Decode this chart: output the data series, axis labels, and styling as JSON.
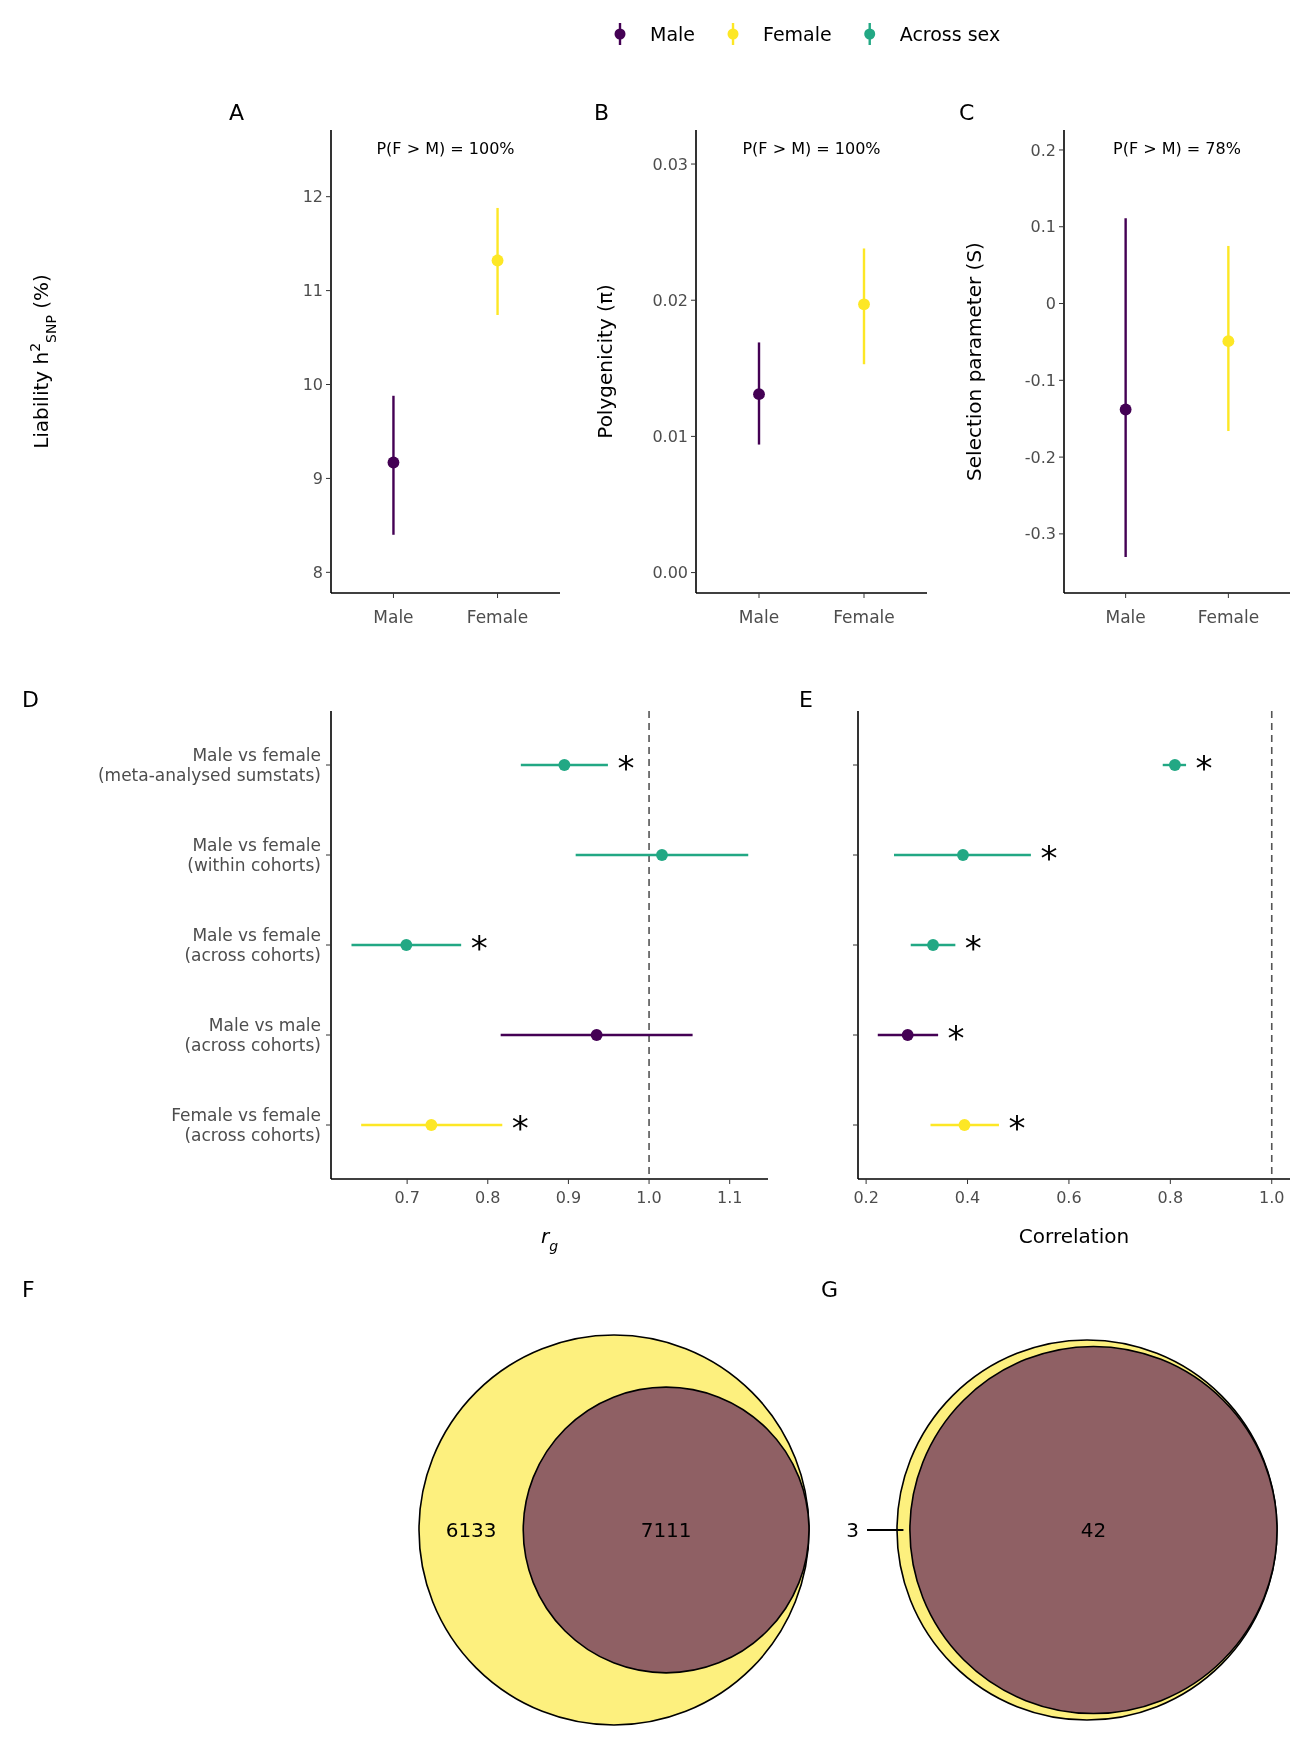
{
  "chart_data": [
    {
      "type": "scatter",
      "title": "A",
      "ylabel": "Liability h$^{2}$$_{SNP}$ (%)",
      "categories": [
        "Male",
        "Female"
      ],
      "ylim": [
        7.78,
        12.71
      ],
      "yticks": [
        8,
        9,
        10,
        11,
        12
      ],
      "marker": "circle",
      "annotations": [
        "P(F > M) = 100%"
      ],
      "legend": "top",
      "series": [
        {
          "name": "Male",
          "color": "#440154",
          "values": [
            9.17,
            null
          ],
          "errors": [
            [
              8.4,
              9.88
            ],
            null
          ]
        },
        {
          "name": "Female",
          "color": "#fde725",
          "values": [
            null,
            11.32
          ],
          "errors": [
            null,
            [
              10.74,
              11.88
            ]
          ]
        }
      ]
    },
    {
      "type": "scatter",
      "title": "B",
      "ylabel": "Polygenicity (π)",
      "categories": [
        "Male",
        "Female"
      ],
      "ylim": [
        -0.0015,
        0.0325
      ],
      "yticks": [
        {
          "value": 0,
          "label": "0.00"
        },
        0.01,
        0.02,
        0.03
      ],
      "marker": "circle",
      "annotations": [
        "P(F > M) = 100%"
      ],
      "series": [
        {
          "name": "Male",
          "color": "#440154",
          "values": [
            0.0131,
            null
          ],
          "errors": [
            [
              0.0094,
              0.0169
            ],
            null
          ]
        },
        {
          "name": "Female",
          "color": "#fde725",
          "values": [
            null,
            0.0197
          ],
          "errors": [
            null,
            [
              0.0153,
              0.0238
            ]
          ]
        }
      ]
    },
    {
      "type": "scatter",
      "title": "C",
      "ylabel": "Selection parameter (S)",
      "categories": [
        "Male",
        "Female"
      ],
      "ylim": [
        -0.377,
        0.226
      ],
      "yticks": [
        -0.3,
        -0.2,
        -0.1,
        0,
        0.1,
        0.2
      ],
      "marker": "circle",
      "annotations": [
        "P(F > M) = 78%"
      ],
      "series": [
        {
          "name": "Male",
          "color": "#440154",
          "values": [
            -0.138,
            null
          ],
          "errors": [
            [
              -0.33,
              0.111
            ],
            null
          ]
        },
        {
          "name": "Female",
          "color": "#fde725",
          "values": [
            null,
            -0.049
          ],
          "errors": [
            null,
            [
              -0.166,
              0.075
            ]
          ]
        }
      ]
    },
    {
      "type": "scatter",
      "title": "D",
      "xlabel": "r$_{g}$",
      "orientation": "horizontal",
      "categories": [
        "Male vs female\n(meta-analysed sumstats)",
        "Male vs female\n(within cohorts)",
        "Male vs female\n(across cohorts)",
        "Male vs male\n(across cohorts)",
        "Female vs female\n(across cohorts)"
      ],
      "xlim": [
        0.6056,
        1.1475
      ],
      "xticks": [
        0.7,
        0.8,
        0.9,
        {
          "value": 1,
          "label": "1.0"
        },
        1.1
      ],
      "marker": "circle",
      "ref_lines": [
        {
          "axis": "x",
          "value": 1,
          "color": "#555555",
          "line_style": "dashed"
        }
      ],
      "annotations": [
        {
          "text": "*",
          "x": 0.949,
          "y": "Male vs female\n(meta-analysed sumstats)"
        },
        {
          "text": "*",
          "x": 0.767,
          "y": "Male vs female\n(across cohorts)"
        },
        {
          "text": "*",
          "x": 0.818,
          "y": "Female vs female\n(across cohorts)"
        }
      ],
      "series": [
        {
          "name": "Male",
          "color": "#440154",
          "values": [
            null,
            null,
            null,
            0.935,
            null
          ],
          "errors": [
            null,
            null,
            null,
            [
              0.816,
              1.054
            ],
            null
          ]
        },
        {
          "name": "Female",
          "color": "#fde725",
          "values": [
            null,
            null,
            null,
            null,
            0.73
          ],
          "errors": [
            null,
            null,
            null,
            null,
            [
              0.643,
              0.818
            ]
          ]
        },
        {
          "name": "Across sex",
          "color": "#22a884",
          "values": [
            0.895,
            1.016,
            0.699,
            null,
            null
          ],
          "errors": [
            [
              0.841,
              0.949
            ],
            [
              0.909,
              1.123
            ],
            [
              0.631,
              0.767
            ],
            null,
            null
          ]
        }
      ]
    },
    {
      "type": "scatter",
      "title": "E",
      "xlabel": "Correlation",
      "orientation": "horizontal",
      "tick_labels": "x",
      "categories": [
        "Male vs female\n(meta-analysed sumstats)",
        "Male vs female\n(within cohorts)",
        "Male vs female\n(across cohorts)",
        "Male vs male\n(across cohorts)",
        "Female vs female\n(across cohorts)"
      ],
      "xlim": [
        0.184,
        1.036
      ],
      "xticks": [
        0.2,
        0.4,
        0.6,
        0.8,
        {
          "value": 1,
          "label": "1.0"
        }
      ],
      "marker": "circle",
      "ref_lines": [
        {
          "axis": "x",
          "value": 1,
          "color": "#555555",
          "line_style": "dashed"
        }
      ],
      "annotations": [
        {
          "text": "*",
          "x": 0.831,
          "y": "Male vs female\n(meta-analysed sumstats)"
        },
        {
          "text": "*",
          "x": 0.525,
          "y": "Male vs female\n(within cohorts)"
        },
        {
          "text": "*",
          "x": 0.376,
          "y": "Male vs female\n(across cohorts)"
        },
        {
          "text": "*",
          "x": 0.342,
          "y": "Male vs male\n(across cohorts)"
        },
        {
          "text": "*",
          "x": 0.462,
          "y": "Female vs female\n(across cohorts)"
        }
      ],
      "series": [
        {
          "name": "Male",
          "color": "#440154",
          "values": [
            null,
            null,
            null,
            0.282,
            null
          ],
          "errors": [
            null,
            null,
            null,
            [
              0.223,
              0.342
            ],
            null
          ]
        },
        {
          "name": "Female",
          "color": "#fde725",
          "values": [
            null,
            null,
            null,
            null,
            0.394
          ],
          "errors": [
            null,
            null,
            null,
            null,
            [
              0.327,
              0.462
            ]
          ]
        },
        {
          "name": "Across sex",
          "color": "#22a884",
          "values": [
            0.809,
            0.391,
            0.332,
            null,
            null
          ],
          "errors": [
            [
              0.785,
              0.831
            ],
            [
              0.255,
              0.525
            ],
            [
              0.288,
              0.376
            ],
            null,
            null
          ]
        }
      ]
    },
    {
      "type": "other",
      "title": "F",
      "categories": [
        null,
        null
      ],
      "values": [
        6133,
        7111
      ],
      "colors": [
        "#fdf07e",
        "#8f6064"
      ],
      "data_labels": true
    },
    {
      "type": "other",
      "title": "G",
      "categories": [
        null,
        null
      ],
      "values": [
        3,
        42
      ],
      "colors": [
        "#fdf07e",
        "#8f6064"
      ],
      "data_labels": true
    }
  ]
}
